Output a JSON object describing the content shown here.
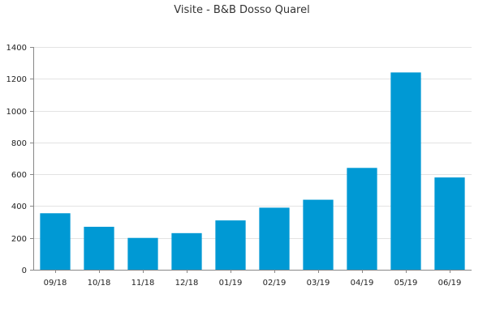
{
  "chart_data": {
    "type": "bar",
    "title": "Visite - B&B Dosso Quarel",
    "xlabel": "",
    "ylabel": "",
    "categories": [
      "09/18",
      "10/18",
      "11/18",
      "12/18",
      "01/19",
      "02/19",
      "03/19",
      "04/19",
      "05/19",
      "06/19"
    ],
    "values": [
      355,
      270,
      200,
      230,
      310,
      390,
      440,
      640,
      1240,
      580
    ],
    "ylim": [
      0,
      1400
    ],
    "yticks": [
      0,
      200,
      400,
      600,
      800,
      1000,
      1200,
      1400
    ],
    "grid": true,
    "legend": "none",
    "bar_color": "#0099d4"
  }
}
